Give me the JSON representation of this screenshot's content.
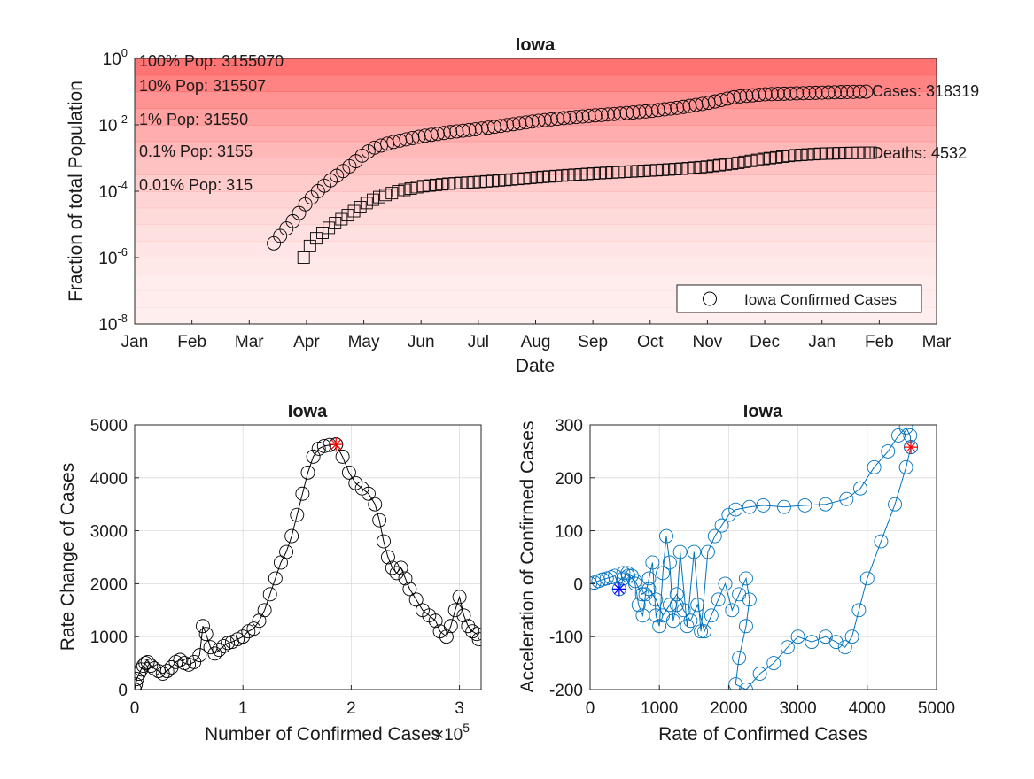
{
  "chart_data": [
    {
      "type": "scatter",
      "title": "Iowa",
      "xlabel": "Date",
      "ylabel": "Fraction of total Population",
      "y_scale": "log",
      "ylim": [
        1e-08,
        1
      ],
      "x_range": [
        "Jan",
        "Mar (next year)"
      ],
      "x_ticks": [
        "Jan",
        "Feb",
        "Mar",
        "Apr",
        "May",
        "Jun",
        "Jul",
        "Aug",
        "Sep",
        "Oct",
        "Nov",
        "Dec",
        "Jan",
        "Feb",
        "Mar"
      ],
      "y_ticks": [
        {
          "base": "10",
          "exp": "0",
          "value": 1
        },
        {
          "base": "10",
          "exp": "-2",
          "value": 0.01
        },
        {
          "base": "10",
          "exp": "-4",
          "value": 0.0001
        },
        {
          "base": "10",
          "exp": "-6",
          "value": 1e-06
        },
        {
          "base": "10",
          "exp": "-8",
          "value": 1e-08
        }
      ],
      "population_bands": [
        {
          "label": "100% Pop: 3155070",
          "fraction": 1
        },
        {
          "label": "10% Pop: 315507",
          "fraction": 0.1
        },
        {
          "label": "1% Pop: 31550",
          "fraction": 0.01
        },
        {
          "label": "0.1% Pop: 3155",
          "fraction": 0.001
        },
        {
          "label": "0.01% Pop: 315",
          "fraction": 0.0001
        }
      ],
      "band_color": "#ff5a5a",
      "legend": {
        "label": "Iowa Confirmed Cases",
        "placement": "bottom-right"
      },
      "annotations": {
        "cases": "Cases: 318319",
        "deaths": "Deaths: 4532"
      },
      "series": [
        {
          "role": "cases",
          "marker": "circle",
          "color": "#000000",
          "start_month": 2.43,
          "end_month": 12.85,
          "points": [
            [
              2.43,
              2.7e-06
            ],
            [
              2.6,
              6e-06
            ],
            [
              2.8,
              1.5e-05
            ],
            [
              3.0,
              4.5e-05
            ],
            [
              3.2,
              0.0001
            ],
            [
              3.4,
              0.0002
            ],
            [
              3.6,
              0.00036
            ],
            [
              3.8,
              0.00065
            ],
            [
              4.0,
              0.0013
            ],
            [
              4.2,
              0.0021
            ],
            [
              4.5,
              0.003
            ],
            [
              5.0,
              0.0045
            ],
            [
              5.5,
              0.006
            ],
            [
              6.0,
              0.0075
            ],
            [
              6.5,
              0.0098
            ],
            [
              7.0,
              0.013
            ],
            [
              7.5,
              0.016
            ],
            [
              8.0,
              0.019
            ],
            [
              8.5,
              0.022
            ],
            [
              9.0,
              0.026
            ],
            [
              9.5,
              0.033
            ],
            [
              10.0,
              0.045
            ],
            [
              10.5,
              0.07
            ],
            [
              11.0,
              0.083
            ],
            [
              11.5,
              0.088
            ],
            [
              12.0,
              0.093
            ],
            [
              12.5,
              0.098
            ],
            [
              12.85,
              0.1
            ]
          ]
        },
        {
          "role": "deaths",
          "marker": "square",
          "color": "#000000",
          "start_month": 2.95,
          "end_month": 12.85,
          "points": [
            [
              2.95,
              1e-06
            ],
            [
              3.1,
              3e-06
            ],
            [
              3.3,
              6e-06
            ],
            [
              3.5,
              1.1e-05
            ],
            [
              3.7,
              1.8e-05
            ],
            [
              3.9,
              3e-05
            ],
            [
              4.1,
              5e-05
            ],
            [
              4.3,
              7e-05
            ],
            [
              4.6,
              0.0001
            ],
            [
              5.0,
              0.00014
            ],
            [
              5.5,
              0.00017
            ],
            [
              6.0,
              0.00019
            ],
            [
              6.5,
              0.00022
            ],
            [
              7.0,
              0.00026
            ],
            [
              7.5,
              0.0003
            ],
            [
              8.0,
              0.00034
            ],
            [
              8.5,
              0.00038
            ],
            [
              9.0,
              0.00042
            ],
            [
              9.5,
              0.00047
            ],
            [
              10.0,
              0.00055
            ],
            [
              10.5,
              0.0007
            ],
            [
              11.0,
              0.00095
            ],
            [
              11.5,
              0.0012
            ],
            [
              12.0,
              0.00135
            ],
            [
              12.5,
              0.00142
            ],
            [
              12.85,
              0.00144
            ]
          ]
        }
      ]
    },
    {
      "type": "line",
      "title": "Iowa",
      "xlabel": "Number of Confirmed Cases",
      "x_exponent_label": {
        "prefix": "×",
        "base": "10",
        "exp": "5"
      },
      "ylabel": "Rate Change of Cases",
      "xlim": [
        0,
        3.2
      ],
      "ylim": [
        0,
        5000
      ],
      "x_ticks": [
        "0",
        "1",
        "2",
        "3"
      ],
      "y_ticks": [
        "0",
        "1000",
        "2000",
        "3000",
        "4000",
        "5000"
      ],
      "grid": true,
      "marker": "circle",
      "color": "#000000",
      "highlight": {
        "x": 1.86,
        "y": 4630,
        "marker": "asterisk",
        "color": "#ff0000"
      },
      "points": [
        [
          0,
          0
        ],
        [
          0.01,
          100
        ],
        [
          0.02,
          200
        ],
        [
          0.04,
          300
        ],
        [
          0.06,
          380
        ],
        [
          0.08,
          450
        ],
        [
          0.1,
          500
        ],
        [
          0.12,
          520
        ],
        [
          0.15,
          450
        ],
        [
          0.18,
          400
        ],
        [
          0.22,
          350
        ],
        [
          0.26,
          300
        ],
        [
          0.3,
          350
        ],
        [
          0.34,
          420
        ],
        [
          0.38,
          520
        ],
        [
          0.42,
          560
        ],
        [
          0.46,
          500
        ],
        [
          0.5,
          470
        ],
        [
          0.55,
          520
        ],
        [
          0.6,
          650
        ],
        [
          0.63,
          1200
        ],
        [
          0.66,
          1050
        ],
        [
          0.7,
          800
        ],
        [
          0.74,
          680
        ],
        [
          0.78,
          750
        ],
        [
          0.82,
          820
        ],
        [
          0.86,
          880
        ],
        [
          0.9,
          900
        ],
        [
          0.95,
          950
        ],
        [
          1.0,
          1000
        ],
        [
          1.05,
          1100
        ],
        [
          1.1,
          1150
        ],
        [
          1.15,
          1300
        ],
        [
          1.2,
          1500
        ],
        [
          1.25,
          1800
        ],
        [
          1.3,
          2100
        ],
        [
          1.35,
          2400
        ],
        [
          1.4,
          2600
        ],
        [
          1.45,
          2900
        ],
        [
          1.5,
          3300
        ],
        [
          1.55,
          3700
        ],
        [
          1.6,
          4100
        ],
        [
          1.65,
          4400
        ],
        [
          1.7,
          4550
        ],
        [
          1.75,
          4600
        ],
        [
          1.8,
          4620
        ],
        [
          1.86,
          4630
        ],
        [
          1.92,
          4400
        ],
        [
          1.98,
          4100
        ],
        [
          2.04,
          3900
        ],
        [
          2.1,
          3800
        ],
        [
          2.16,
          3700
        ],
        [
          2.22,
          3500
        ],
        [
          2.26,
          3200
        ],
        [
          2.3,
          2800
        ],
        [
          2.34,
          2500
        ],
        [
          2.38,
          2300
        ],
        [
          2.42,
          2200
        ],
        [
          2.46,
          2300
        ],
        [
          2.5,
          2100
        ],
        [
          2.54,
          1900
        ],
        [
          2.6,
          1700
        ],
        [
          2.66,
          1500
        ],
        [
          2.72,
          1400
        ],
        [
          2.78,
          1300
        ],
        [
          2.82,
          1100
        ],
        [
          2.88,
          1000
        ],
        [
          2.92,
          1200
        ],
        [
          2.96,
          1500
        ],
        [
          3.0,
          1750
        ],
        [
          3.04,
          1400
        ],
        [
          3.08,
          1200
        ],
        [
          3.12,
          1100
        ],
        [
          3.16,
          1050
        ],
        [
          3.18,
          950
        ]
      ]
    },
    {
      "type": "line",
      "title": "Iowa",
      "xlabel": "Rate of Confirmed Cases",
      "ylabel": "Acceleration of Confirmed Cases",
      "xlim": [
        0,
        5000
      ],
      "ylim": [
        -200,
        300
      ],
      "x_ticks": [
        "0",
        "1000",
        "2000",
        "3000",
        "4000",
        "5000"
      ],
      "y_ticks": [
        "-200",
        "-100",
        "0",
        "100",
        "200",
        "300"
      ],
      "grid": true,
      "marker": "circle",
      "color": "#0072bd",
      "start_marker": {
        "x": 420,
        "y": -10,
        "marker": "asterisk",
        "color": "#0000ff"
      },
      "highlight": {
        "x": 4630,
        "y": 258,
        "marker": "asterisk",
        "color": "#ff0000"
      },
      "points": [
        [
          0,
          0
        ],
        [
          60,
          2
        ],
        [
          120,
          5
        ],
        [
          180,
          8
        ],
        [
          240,
          10
        ],
        [
          300,
          12
        ],
        [
          360,
          15
        ],
        [
          420,
          -10
        ],
        [
          480,
          10
        ],
        [
          540,
          20
        ],
        [
          600,
          15
        ],
        [
          650,
          0
        ],
        [
          700,
          -40
        ],
        [
          760,
          -60
        ],
        [
          800,
          -20
        ],
        [
          850,
          10
        ],
        [
          900,
          40
        ],
        [
          950,
          -60
        ],
        [
          1000,
          -80
        ],
        [
          1050,
          20
        ],
        [
          1100,
          90
        ],
        [
          1150,
          40
        ],
        [
          1200,
          -70
        ],
        [
          1250,
          -40
        ],
        [
          1300,
          60
        ],
        [
          1400,
          -80
        ],
        [
          1500,
          60
        ],
        [
          1600,
          -90
        ],
        [
          1700,
          60
        ],
        [
          1800,
          90
        ],
        [
          1900,
          110
        ],
        [
          2000,
          130
        ],
        [
          2100,
          140
        ],
        [
          2300,
          145
        ],
        [
          2500,
          148
        ],
        [
          2800,
          145
        ],
        [
          3100,
          148
        ],
        [
          3400,
          150
        ],
        [
          3700,
          160
        ],
        [
          3900,
          180
        ],
        [
          4100,
          220
        ],
        [
          4300,
          250
        ],
        [
          4450,
          280
        ],
        [
          4560,
          295
        ],
        [
          4620,
          280
        ],
        [
          4630,
          258
        ],
        [
          4560,
          220
        ],
        [
          4400,
          150
        ],
        [
          4200,
          80
        ],
        [
          4000,
          10
        ],
        [
          3880,
          -50
        ],
        [
          3780,
          -100
        ],
        [
          3680,
          -120
        ],
        [
          3550,
          -110
        ],
        [
          3400,
          -100
        ],
        [
          3200,
          -110
        ],
        [
          3000,
          -100
        ],
        [
          2850,
          -120
        ],
        [
          2650,
          -150
        ],
        [
          2450,
          -170
        ],
        [
          2250,
          -200
        ],
        [
          2100,
          -190
        ],
        [
          2150,
          -140
        ],
        [
          2250,
          -80
        ],
        [
          2300,
          -30
        ],
        [
          2250,
          10
        ],
        [
          2150,
          -20
        ],
        [
          2050,
          -50
        ],
        [
          1950,
          0
        ],
        [
          1850,
          -30
        ],
        [
          1750,
          -60
        ],
        [
          1650,
          -90
        ],
        [
          1550,
          -40
        ],
        [
          1450,
          -70
        ],
        [
          1350,
          -50
        ],
        [
          1250,
          -20
        ],
        [
          1150,
          -40
        ],
        [
          1050,
          -60
        ],
        [
          950,
          -30
        ],
        [
          850,
          -10
        ],
        [
          750,
          -20
        ],
        [
          650,
          5
        ],
        [
          550,
          15
        ],
        [
          480,
          20
        ]
      ]
    }
  ]
}
